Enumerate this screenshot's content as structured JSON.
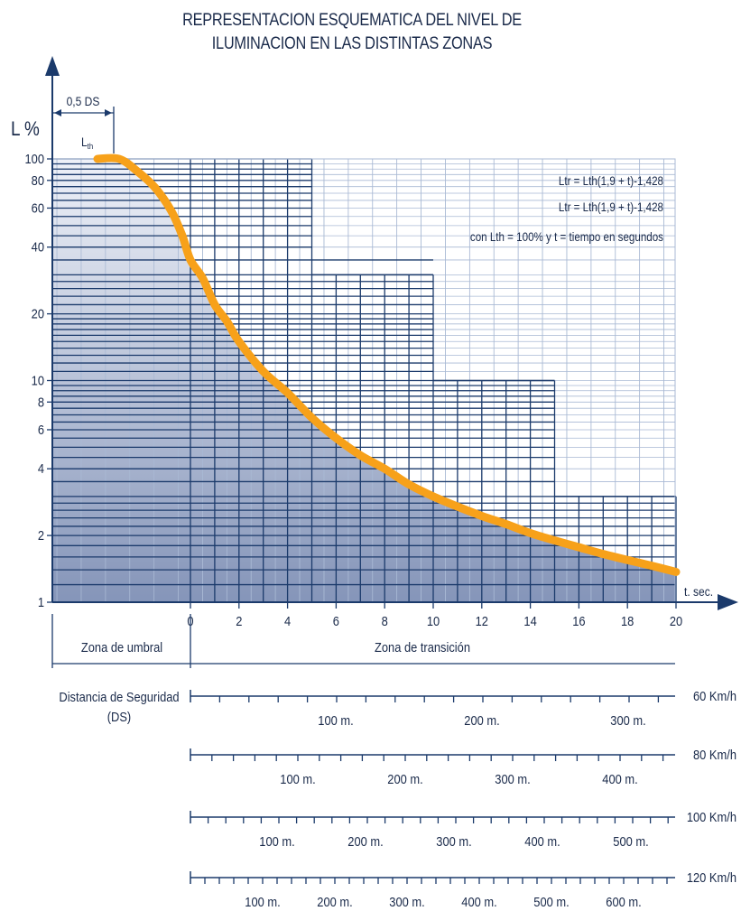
{
  "title_lines": [
    "REPRESENTACION ESQUEMATICA DEL NIVEL DE",
    "ILUMINACION EN LAS DISTINTAS ZONAS"
  ],
  "chart_data": {
    "type": "line",
    "title": "REPRESENTACION ESQUEMATICA DEL NIVEL DE ILUMINACION EN LAS DISTINTAS ZONAS",
    "ylabel": "L %",
    "xlabel": "t. sec.",
    "y_scale": "log",
    "y_ticks": [
      1,
      2,
      4,
      6,
      8,
      10,
      20,
      40,
      60,
      80,
      100
    ],
    "x_ticks": [
      0,
      2,
      4,
      6,
      8,
      10,
      12,
      14,
      16,
      18,
      20
    ],
    "ylim": [
      1,
      100
    ],
    "grid": true,
    "threshold_label": "0,5 DS",
    "lth_label": "Lth",
    "formulas": [
      "Ltr = Lth(1,9 + t)-1,428",
      "Ltr = Lth(1,9 + t)-1,428",
      "con Lth = 100% y t = tiempo en segundos"
    ],
    "series": [
      {
        "x": [
          0,
          0.5,
          1,
          1.5,
          2,
          3,
          4,
          5,
          6,
          7,
          8,
          9,
          10,
          11,
          12,
          13,
          14,
          15,
          16,
          17,
          18,
          19,
          20
        ],
        "y": [
          35,
          29,
          22,
          18.5,
          15,
          11,
          8.8,
          6.8,
          5.5,
          4.6,
          4,
          3.4,
          3,
          2.7,
          2.45,
          2.25,
          2.05,
          1.9,
          1.77,
          1.65,
          1.55,
          1.46,
          1.37
        ]
      }
    ],
    "zones": [
      "Zona de umbral",
      "Zona de transición"
    ],
    "distance_label": [
      "Distancia de Seguridad",
      "(DS)"
    ],
    "distance_scales": [
      {
        "speed": "60 Km/h",
        "marks": [
          "100 m.",
          "200 m.",
          "300 m."
        ]
      },
      {
        "speed": "80 Km/h",
        "marks": [
          "100 m.",
          "200 m.",
          "300 m.",
          "400 m."
        ]
      },
      {
        "speed": "100 Km/h",
        "marks": [
          "100 m.",
          "200 m.",
          "300 m.",
          "400 m.",
          "500 m."
        ]
      },
      {
        "speed": "120 Km/h",
        "marks": [
          "100 m.",
          "200 m.",
          "300 m.",
          "400 m.",
          "500 m.",
          "600 m."
        ]
      }
    ],
    "colors": {
      "grid": "#1b3a6b",
      "curve": "#f7a11a",
      "fill_top": "#e9eef7",
      "fill_bottom": "#8797bb",
      "text": "#1a2a4a"
    }
  }
}
